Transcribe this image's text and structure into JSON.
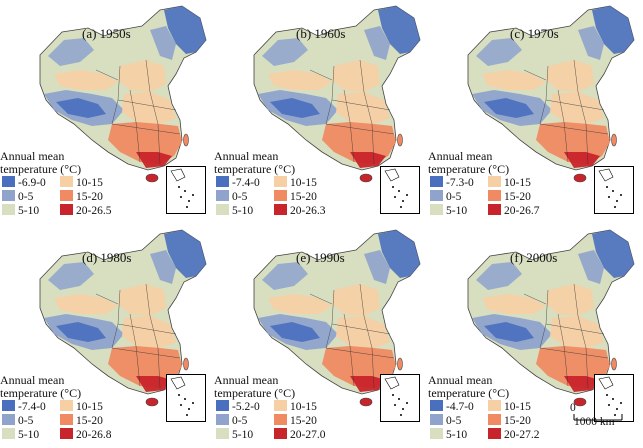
{
  "legend_title": [
    "Annual mean",
    "temperature (°C)"
  ],
  "panels": [
    {
      "title": "(a) 1950s",
      "ranges": [
        "-6.9-0",
        "0-5",
        "5-10",
        "10-15",
        "15-20",
        "20-26.5"
      ]
    },
    {
      "title": "(b) 1960s",
      "ranges": [
        "-7.4-0",
        "0-5",
        "5-10",
        "10-15",
        "15-20",
        "20-26.3"
      ]
    },
    {
      "title": "(c) 1970s",
      "ranges": [
        "-7.3-0",
        "0-5",
        "5-10",
        "10-15",
        "15-20",
        "20-26.7"
      ]
    },
    {
      "title": "(d) 1980s",
      "ranges": [
        "-7.4-0",
        "0-5",
        "5-10",
        "10-15",
        "15-20",
        "20-26.8"
      ]
    },
    {
      "title": "(e) 1990s",
      "ranges": [
        "-5.2-0",
        "0-5",
        "5-10",
        "10-15",
        "15-20",
        "20-27.0"
      ]
    },
    {
      "title": "(f) 2000s",
      "ranges": [
        "-4.7-0",
        "0-5",
        "5-10",
        "10-15",
        "15-20",
        "20-27.2"
      ]
    }
  ],
  "colors": [
    "#4a6fbf",
    "#8fa3cc",
    "#d7dfc0",
    "#f7cfa4",
    "#ef8a62",
    "#c8242b"
  ],
  "scale": {
    "zero": "0",
    "label": "1000 km"
  }
}
